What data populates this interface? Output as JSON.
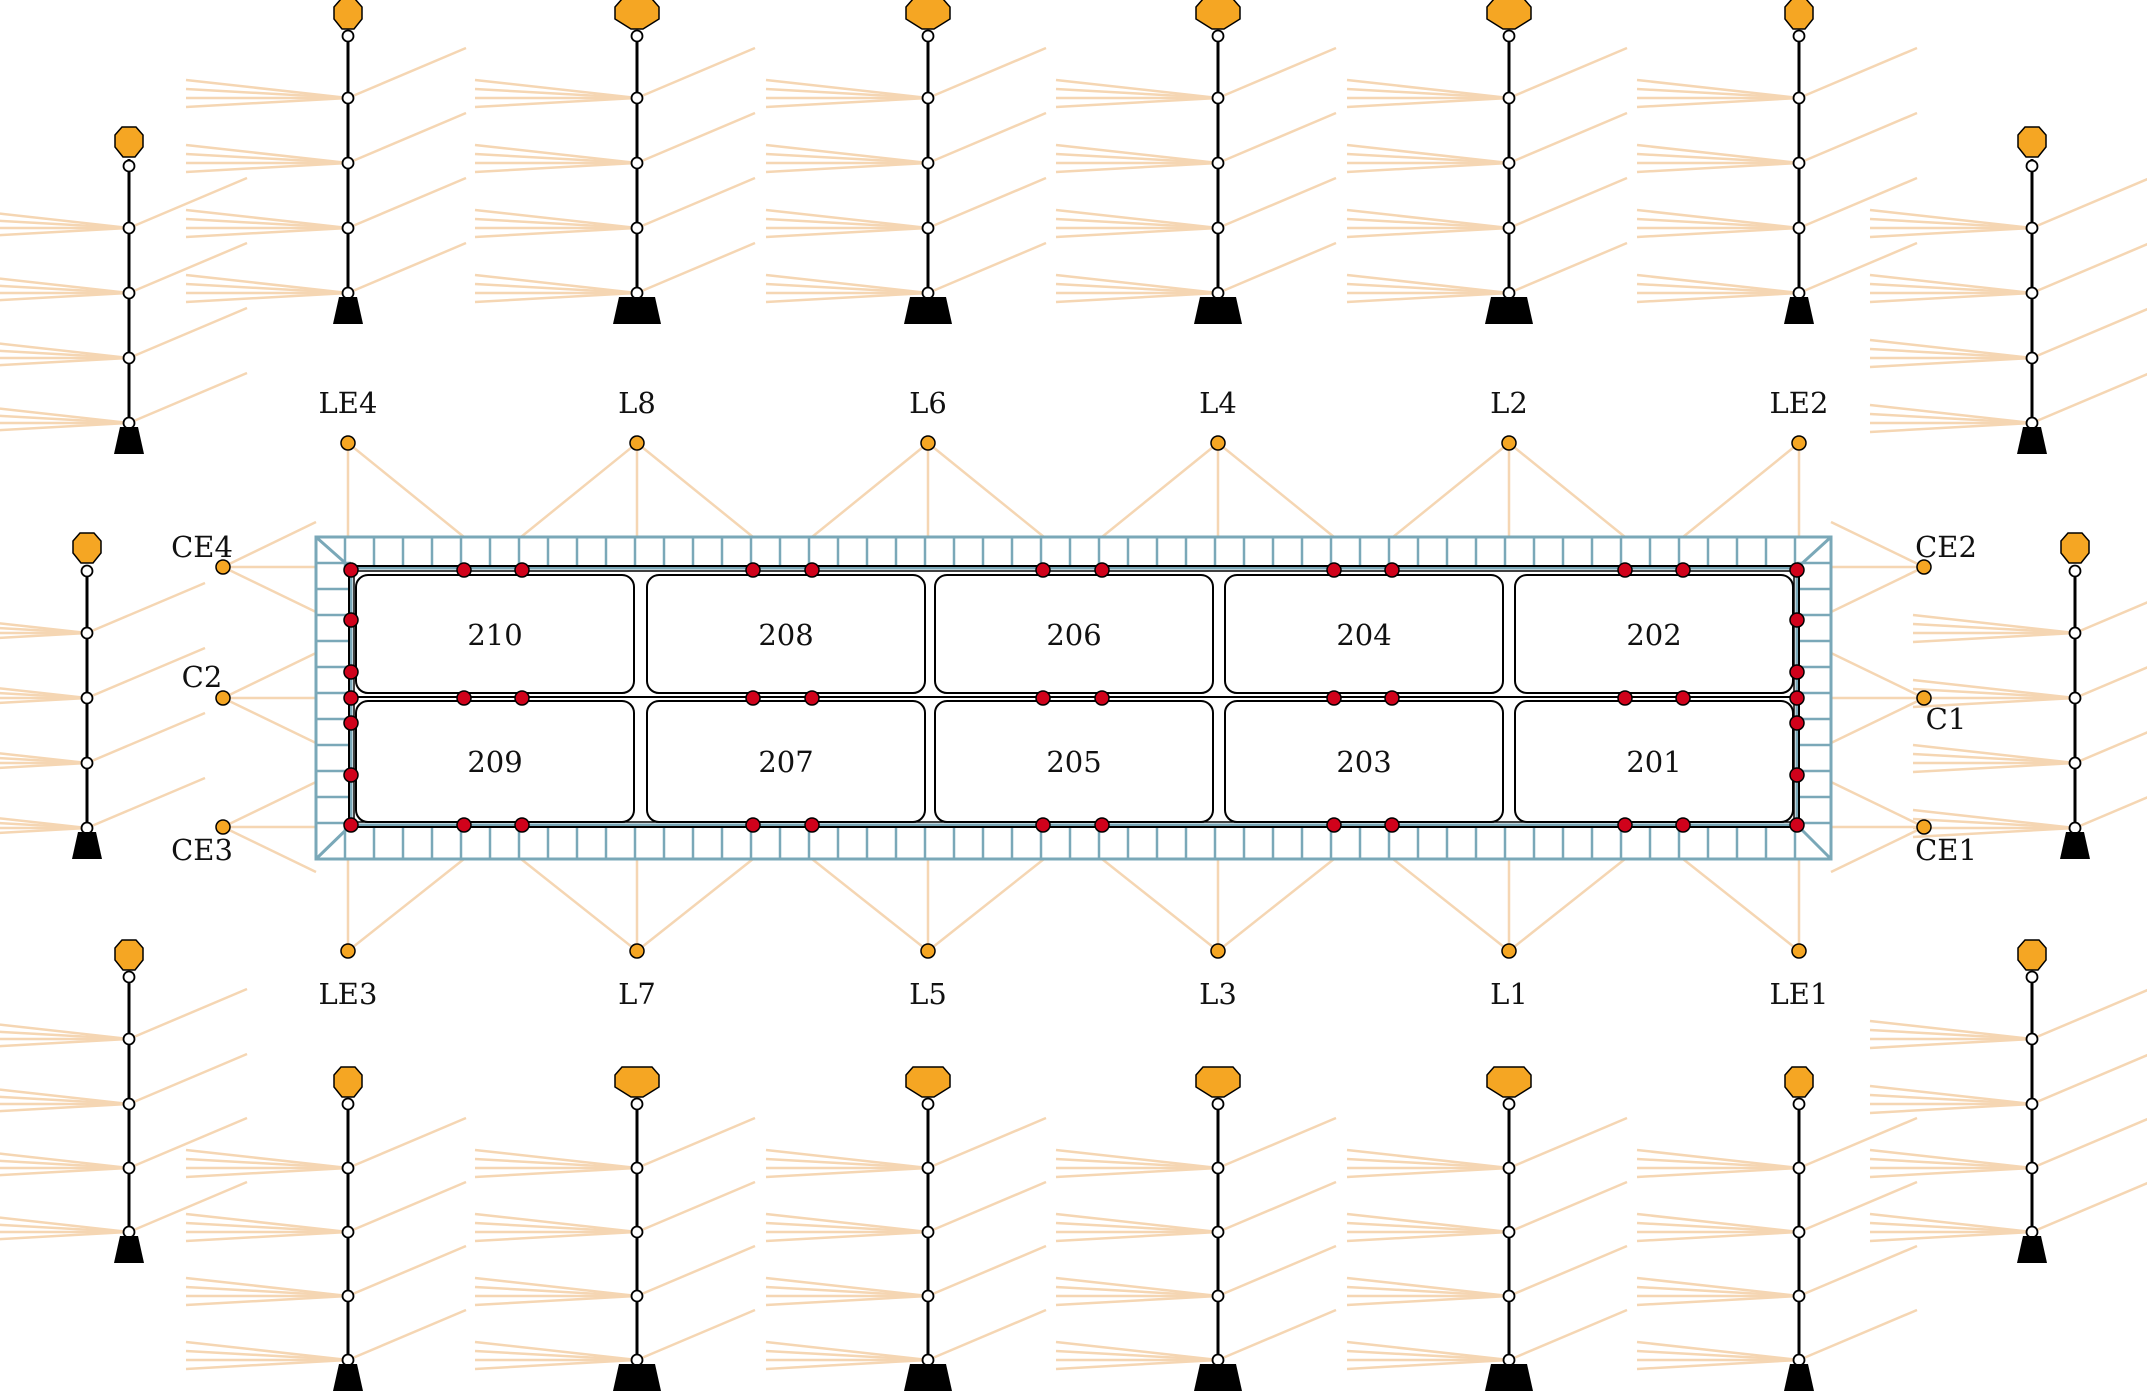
{
  "colors": {
    "ink": "#000000",
    "frame": "#7aa8b8",
    "strut": "#f5d6b3",
    "anchor": "#f5a623",
    "node_red": "#d0021b",
    "node_white": "#ffffff"
  },
  "rooms": {
    "top": [
      "210",
      "208",
      "206",
      "204",
      "202"
    ],
    "bottom": [
      "209",
      "207",
      "205",
      "203",
      "201"
    ]
  },
  "top_points": [
    "LE4",
    "L8",
    "L6",
    "L4",
    "L2",
    "LE2"
  ],
  "bottom_points": [
    "LE3",
    "L7",
    "L5",
    "L3",
    "L1",
    "LE1"
  ],
  "left_points": [
    "CE4",
    "C2",
    "CE3"
  ],
  "right_points": [
    "CE2",
    "C1",
    "CE1"
  ],
  "icons": {
    "mast": "tower-icon",
    "point": "anchor-point-icon",
    "node": "junction-node-icon"
  }
}
